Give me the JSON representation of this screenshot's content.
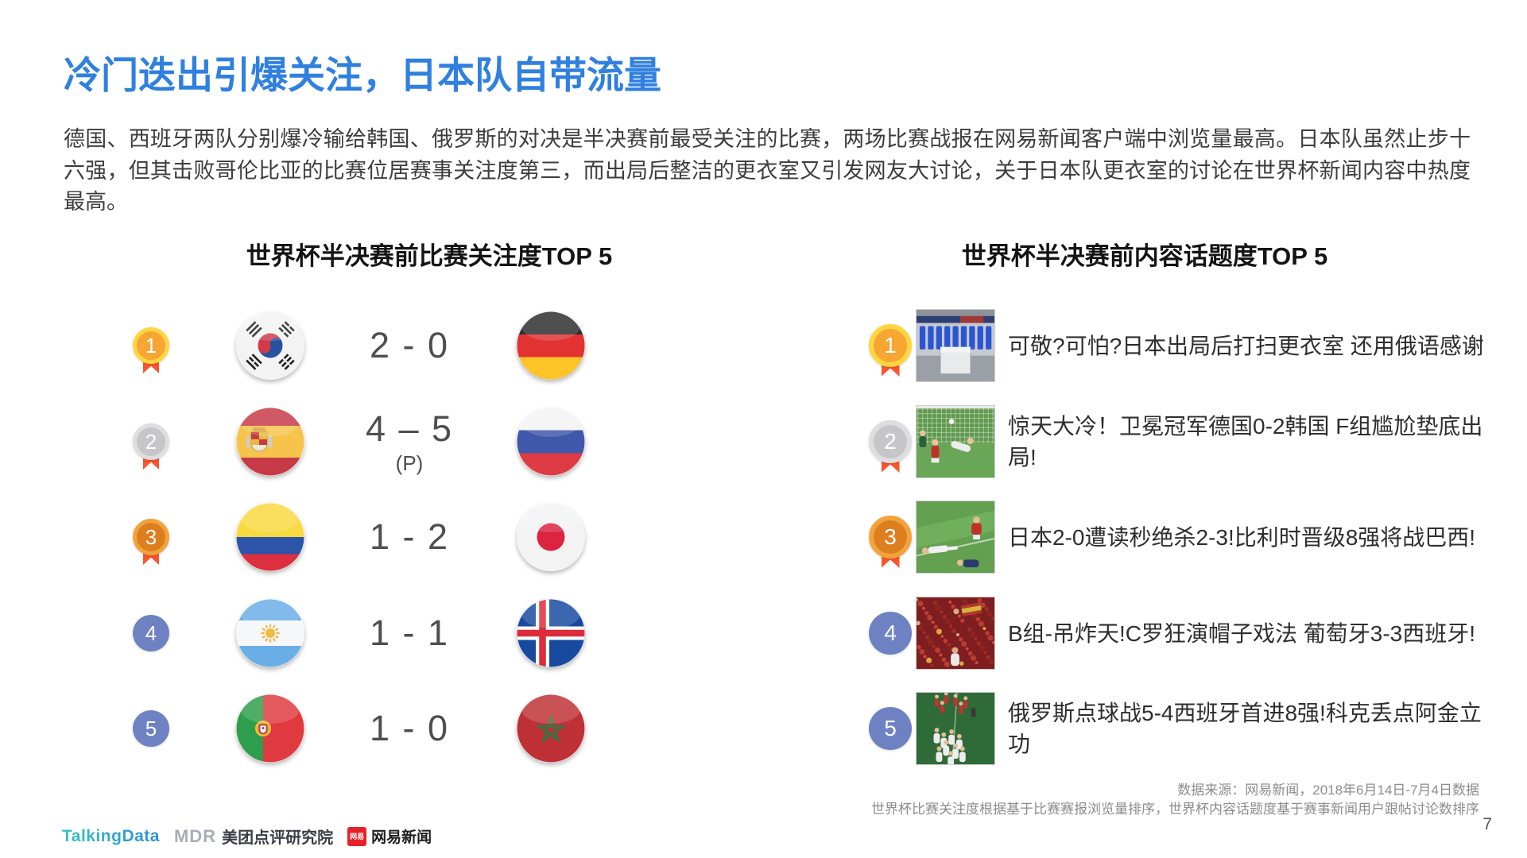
{
  "title": "冷门迭出引爆关注，日本队自带流量",
  "intro": "德国、西班牙两队分别爆冷输给韩国、俄罗斯的对决是半决赛前最受关注的比赛，两场比赛战报在网易新闻客户端中浏览量最高。日本队虽然止步十六强，但其击败哥伦比亚的比赛位居赛事关注度第三，而出局后整洁的更衣室又引发网友大讨论，关于日本队更衣室的讨论在世界杯新闻内容中热度最高。",
  "left_panel": {
    "header": "世界杯半决赛前比赛关注度TOP 5",
    "rows": [
      {
        "rank": "1",
        "medal": "gold",
        "home_flag": "south-korea",
        "score": "2 - 0",
        "score_note": "",
        "away_flag": "germany"
      },
      {
        "rank": "2",
        "medal": "silver",
        "home_flag": "spain",
        "score": "4 – 5",
        "score_note": "(P)",
        "away_flag": "russia"
      },
      {
        "rank": "3",
        "medal": "bronze",
        "home_flag": "colombia",
        "score": "1 - 2",
        "score_note": "",
        "away_flag": "japan"
      },
      {
        "rank": "4",
        "medal": "plain",
        "home_flag": "argentina",
        "score": "1 - 1",
        "score_note": "",
        "away_flag": "iceland"
      },
      {
        "rank": "5",
        "medal": "plain",
        "home_flag": "portugal",
        "score": "1 - 0",
        "score_note": "",
        "away_flag": "morocco"
      }
    ]
  },
  "right_panel": {
    "header": "世界杯半决赛前内容话题度TOP 5",
    "rows": [
      {
        "rank": "1",
        "medal": "gold",
        "thumb": "locker-room",
        "headline": "可敬?可怕?日本出局后打扫更衣室 还用俄语感谢"
      },
      {
        "rank": "2",
        "medal": "silver",
        "thumb": "germany-korea-goal",
        "headline": "惊天大冷！卫冕冠军德国0-2韩国 F组尴尬垫底出局!"
      },
      {
        "rank": "3",
        "medal": "bronze",
        "thumb": "japan-belgium-fallen",
        "headline": "日本2-0遭读秒绝杀2-3!比利时晋级8强将战巴西!"
      },
      {
        "rank": "4",
        "medal": "plain",
        "thumb": "spain-fans-crowd",
        "headline": "B组-吊炸天!C罗狂演帽子戏法 葡萄牙3-3西班牙!"
      },
      {
        "rank": "5",
        "medal": "plain",
        "thumb": "russia-celebration",
        "headline": "俄罗斯点球战5-4西班牙首进8强!科克丢点阿金立功"
      }
    ]
  },
  "footer": {
    "source_line1": "数据来源：网易新闻，2018年6月14日-7月4日数据",
    "source_line2": "世界杯比赛关注度根据基于比赛赛报浏览量排序，世界杯内容话题度基于赛事新闻用户跟帖讨论数排序",
    "page_number": "7",
    "logos": {
      "talkingdata": "TalkingData",
      "mdr": "MDR",
      "meituan_research": "美团点评研究院",
      "netease_badge": "网易",
      "netease_news": "网易新闻"
    }
  },
  "colors": {
    "accent_blue": "#2F80DF",
    "ribbon_red": "#FB552D",
    "gold_ring": "#FFD540",
    "gold_fill": "#F7A633",
    "silver_ring": "#DEDEE0",
    "silver_fill": "#C6C6CA",
    "bronze_ring": "#F2A33C",
    "bronze_fill": "#DD7F1F",
    "rank_blue": "#6E82C3",
    "netease_red": "#E62129",
    "talkingdata_teal": "#2BAEC6"
  }
}
